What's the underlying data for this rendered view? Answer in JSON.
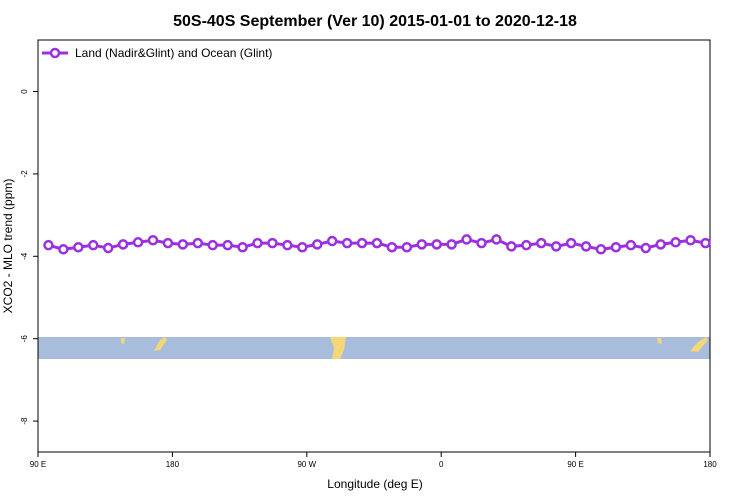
{
  "chart_data": {
    "type": "line",
    "title": "50S-40S September (Ver 10)   2015-01-01 to 2020-12-18",
    "x_label": "Longitude (deg E)",
    "y_label": "XCO2 - MLO trend (ppm)",
    "xlim": [
      90,
      540
    ],
    "xticks": [
      {
        "value": 90,
        "label": "90 E"
      },
      180,
      {
        "value": 270,
        "label": "90 W"
      },
      {
        "value": 360,
        "label": "0"
      },
      {
        "value": 450,
        "label": "90 E"
      },
      {
        "value": 540,
        "label": "180"
      }
    ],
    "ylim": [
      -8.75,
      1.25
    ],
    "yticks": [
      0,
      -2,
      -4,
      -6,
      -8
    ],
    "legend": "top-left",
    "x": [
      97,
      107,
      117,
      127,
      137,
      147,
      157,
      167,
      177,
      187,
      197,
      207,
      217,
      227,
      237,
      247,
      257,
      267,
      277,
      287,
      297,
      307,
      317,
      327,
      337,
      347,
      357,
      367,
      377,
      387,
      397,
      407,
      417,
      427,
      437,
      447,
      457,
      467,
      477,
      487,
      497,
      507,
      517,
      527,
      537
    ],
    "series": [
      {
        "name": "Land (Nadir&Glint) and Ocean (Glint)",
        "color": "#9b30e0",
        "values": [
          -3.73,
          -3.83,
          -3.78,
          -3.73,
          -3.8,
          -3.71,
          -3.66,
          -3.61,
          -3.68,
          -3.71,
          -3.68,
          -3.73,
          -3.73,
          -3.78,
          -3.68,
          -3.68,
          -3.73,
          -3.78,
          -3.71,
          -3.63,
          -3.68,
          -3.68,
          -3.68,
          -3.78,
          -3.78,
          -3.71,
          -3.71,
          -3.71,
          -3.59,
          -3.68,
          -3.59,
          -3.76,
          -3.73,
          -3.68,
          -3.76,
          -3.68,
          -3.76,
          -3.83,
          -3.78,
          -3.73,
          -3.8,
          -3.71,
          -3.66,
          -3.61,
          -3.68
        ]
      }
    ]
  }
}
